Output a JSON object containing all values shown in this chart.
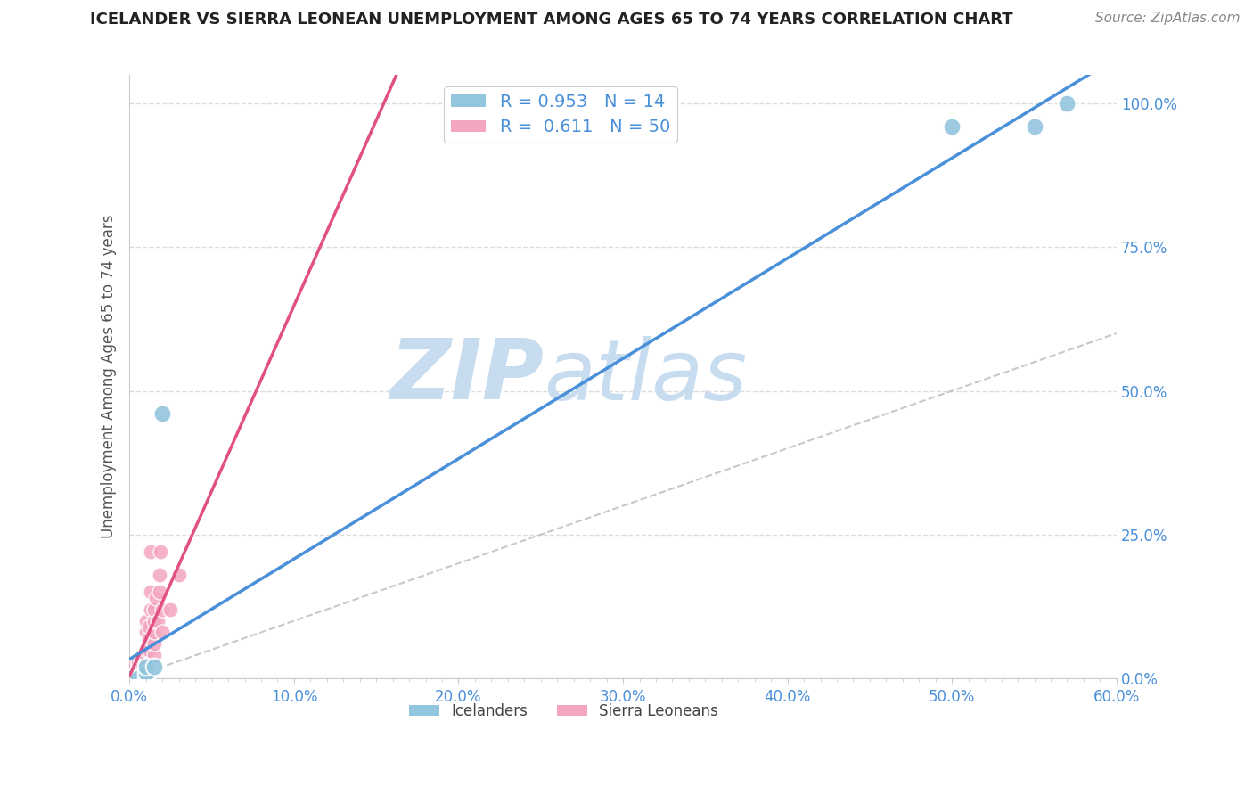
{
  "title": "ICELANDER VS SIERRA LEONEAN UNEMPLOYMENT AMONG AGES 65 TO 74 YEARS CORRELATION CHART",
  "source": "Source: ZipAtlas.com",
  "ylabel": "Unemployment Among Ages 65 to 74 years",
  "x_tick_labels": [
    "0.0%",
    "",
    "",
    "",
    "",
    "",
    "",
    "",
    "",
    "10.0%",
    "",
    "",
    "",
    "",
    "",
    "",
    "",
    "",
    "",
    "20.0%",
    "",
    "",
    "",
    "",
    "",
    "",
    "",
    "",
    "",
    "30.0%",
    "",
    "",
    "",
    "",
    "",
    "",
    "",
    "",
    "",
    "40.0%",
    "",
    "",
    "",
    "",
    "",
    "",
    "",
    "",
    "",
    "50.0%",
    "",
    "",
    "",
    "",
    "",
    "",
    "",
    "",
    "",
    "60.0%"
  ],
  "x_ticks_major": [
    0.0,
    0.1,
    0.2,
    0.3,
    0.4,
    0.5,
    0.6
  ],
  "x_tick_major_labels": [
    "0.0%",
    "10.0%",
    "20.0%",
    "30.0%",
    "40.0%",
    "50.0%",
    "60.0%"
  ],
  "y_ticks_major": [
    0.0,
    0.25,
    0.5,
    0.75,
    1.0
  ],
  "y_tick_major_labels": [
    "0.0%",
    "25.0%",
    "50.0%",
    "75.0%",
    "100.0%"
  ],
  "x_min": 0.0,
  "x_max": 0.6,
  "y_min": 0.0,
  "y_max": 1.05,
  "icelander_color": "#92C5DE",
  "sierra_leonean_color": "#F4A6C0",
  "icelander_line_color": "#4A90D9",
  "sierra_leonean_line_color": "#E05080",
  "R_iceland": 0.953,
  "N_iceland": 14,
  "R_sierra": 0.611,
  "N_sierra": 50,
  "watermark_zip": "ZIP",
  "watermark_atlas": "atlas",
  "watermark_color": "#C8DCF0",
  "icelander_points": [
    [
      0.0,
      0.0
    ],
    [
      0.0,
      0.0
    ],
    [
      0.0,
      0.0
    ],
    [
      0.005,
      0.0
    ],
    [
      0.005,
      0.0
    ],
    [
      0.005,
      0.0
    ],
    [
      0.01,
      0.0
    ],
    [
      0.01,
      0.01
    ],
    [
      0.01,
      0.02
    ],
    [
      0.015,
      0.02
    ],
    [
      0.02,
      0.46
    ],
    [
      0.5,
      0.96
    ],
    [
      0.55,
      0.96
    ],
    [
      0.57,
      1.0
    ]
  ],
  "sierra_leonean_points": [
    [
      0.0,
      0.0
    ],
    [
      0.0,
      0.0
    ],
    [
      0.0,
      0.0
    ],
    [
      0.0,
      0.0
    ],
    [
      0.0,
      0.0
    ],
    [
      0.0,
      0.005
    ],
    [
      0.0,
      0.008
    ],
    [
      0.0,
      0.01
    ],
    [
      0.0,
      0.01
    ],
    [
      0.0,
      0.012
    ],
    [
      0.0,
      0.015
    ],
    [
      0.0,
      0.015
    ],
    [
      0.0,
      0.018
    ],
    [
      0.0,
      0.02
    ],
    [
      0.003,
      0.02
    ],
    [
      0.003,
      0.022
    ],
    [
      0.005,
      0.018
    ],
    [
      0.005,
      0.02
    ],
    [
      0.005,
      0.025
    ],
    [
      0.005,
      0.03
    ],
    [
      0.007,
      0.025
    ],
    [
      0.007,
      0.03
    ],
    [
      0.008,
      0.035
    ],
    [
      0.008,
      0.04
    ],
    [
      0.01,
      0.02
    ],
    [
      0.01,
      0.03
    ],
    [
      0.01,
      0.04
    ],
    [
      0.01,
      0.05
    ],
    [
      0.01,
      0.08
    ],
    [
      0.01,
      0.1
    ],
    [
      0.012,
      0.05
    ],
    [
      0.012,
      0.07
    ],
    [
      0.012,
      0.09
    ],
    [
      0.013,
      0.12
    ],
    [
      0.013,
      0.15
    ],
    [
      0.013,
      0.22
    ],
    [
      0.015,
      0.04
    ],
    [
      0.015,
      0.06
    ],
    [
      0.015,
      0.08
    ],
    [
      0.015,
      0.1
    ],
    [
      0.015,
      0.12
    ],
    [
      0.016,
      0.14
    ],
    [
      0.017,
      0.1
    ],
    [
      0.018,
      0.15
    ],
    [
      0.018,
      0.18
    ],
    [
      0.019,
      0.22
    ],
    [
      0.02,
      0.08
    ],
    [
      0.02,
      0.12
    ],
    [
      0.025,
      0.12
    ],
    [
      0.03,
      0.18
    ]
  ],
  "background_color": "#FFFFFF",
  "grid_color": "#DDDDDD",
  "title_color": "#222222",
  "axis_label_color": "#4A90D9",
  "legend_R_color": "#4A90D9"
}
